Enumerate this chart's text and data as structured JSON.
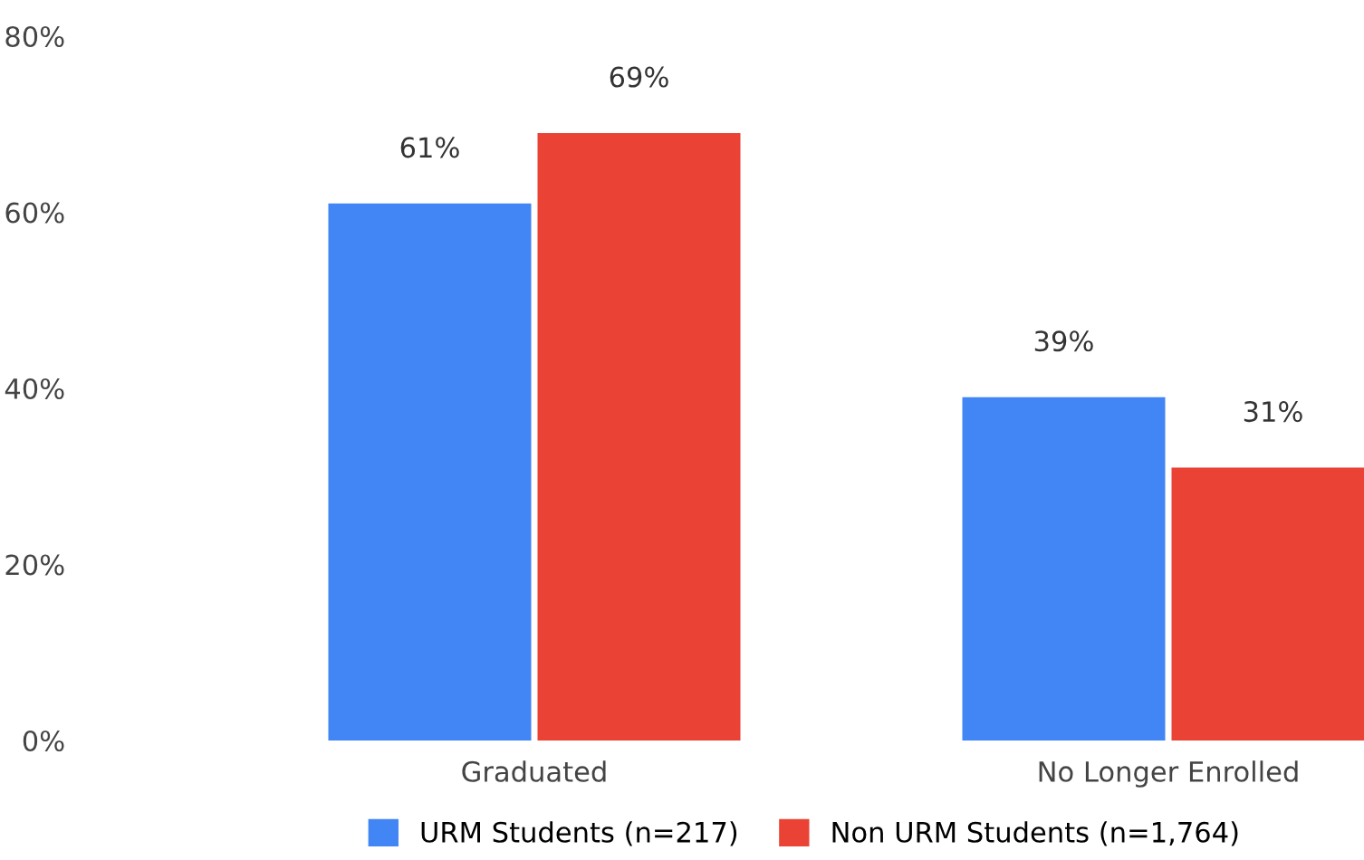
{
  "chart_data": {
    "type": "bar",
    "categories": [
      "Graduated",
      "No Longer Enrolled"
    ],
    "series": [
      {
        "name": "URM Students (n=217)",
        "color": "#4285f4",
        "values": [
          61,
          39
        ],
        "value_labels": [
          "61%",
          "39%"
        ]
      },
      {
        "name": "Non URM Students (n=1,764)",
        "color": "#ea4335",
        "values": [
          69,
          31
        ],
        "value_labels": [
          "69%",
          "31%"
        ]
      }
    ],
    "ylim": [
      0,
      80
    ],
    "yticks": [
      {
        "value": 0,
        "label": "0%"
      },
      {
        "value": 20,
        "label": "20%"
      },
      {
        "value": 40,
        "label": "40%"
      },
      {
        "value": 60,
        "label": "60%"
      },
      {
        "value": 80,
        "label": "80%"
      }
    ],
    "grid": false,
    "legend": "bottom"
  }
}
